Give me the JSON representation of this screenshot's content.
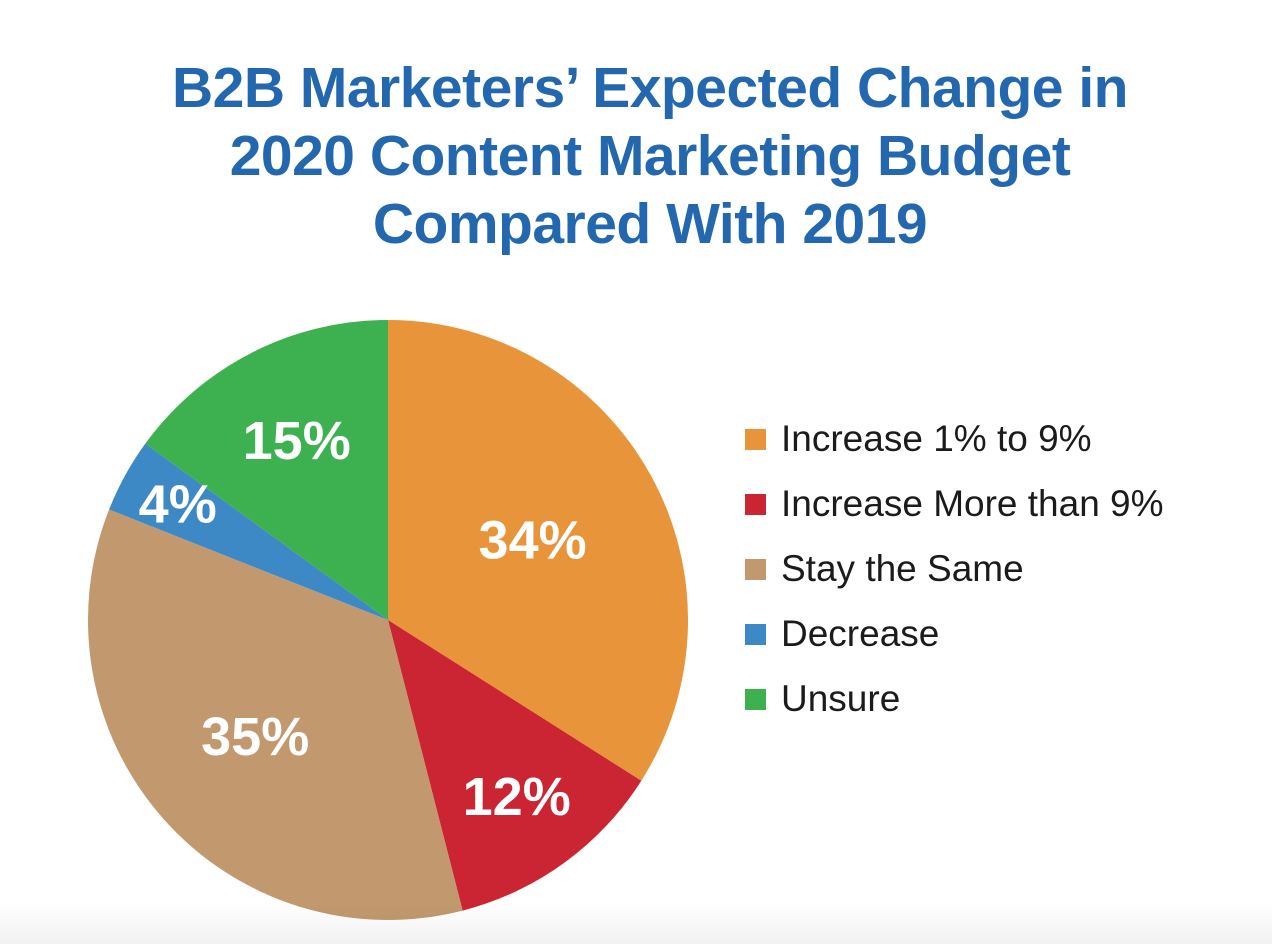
{
  "header": {
    "lines": [
      "B2B Marketers’ Expected Change in",
      "2020 Content Marketing Budget",
      "Compared With 2019"
    ],
    "color": "#2368AE"
  },
  "chart_data": {
    "type": "pie",
    "title": "B2B Marketers’ Expected Change in 2020 Content Marketing Budget Compared With 2019",
    "unit": "%",
    "slices": [
      {
        "label": "Increase 1% to 9%",
        "value": 34,
        "display": "34%",
        "color": "#E8943A"
      },
      {
        "label": "Increase More than 9%",
        "value": 12,
        "display": "12%",
        "color": "#CB2432"
      },
      {
        "label": "Stay the Same",
        "value": 35,
        "display": "35%",
        "color": "#C2996E"
      },
      {
        "label": "Decrease",
        "value": 4,
        "display": "4%",
        "color": "#3D89C6"
      },
      {
        "label": "Unsure",
        "value": 15,
        "display": "15%",
        "color": "#3DB04F"
      }
    ],
    "start_angle_deg": 0,
    "direction": "clockwise",
    "legend_position": "right",
    "data_label_color": "#FFFFFF",
    "label_radius_fractions": [
      0.55,
      0.73,
      0.59,
      0.8,
      0.67
    ]
  }
}
